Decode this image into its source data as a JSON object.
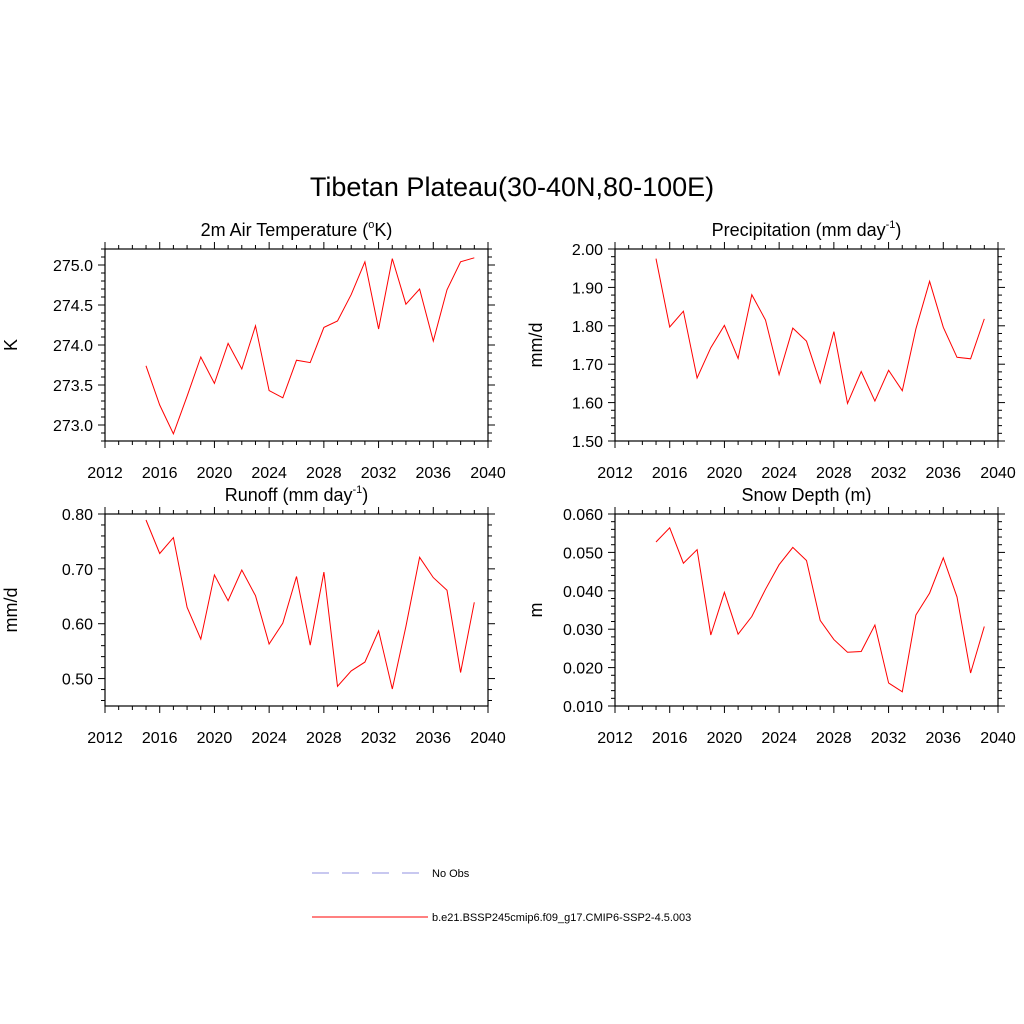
{
  "page_title": "Tibetan Plateau(30-40N,80-100E)",
  "legend": {
    "items": [
      {
        "label": "No Obs",
        "style": "dashed",
        "color": "#a8a8e8"
      },
      {
        "label": "b.e21.BSSP245cmip6.f09_g17.CMIP6-SSP2-4.5.003",
        "style": "solid",
        "color": "#ff0000"
      }
    ]
  },
  "chart_data": [
    {
      "type": "line",
      "title": "2m Air Temperature (",
      "title_sup": "o",
      "title_after": "K)",
      "ylabel": "K",
      "xlim": [
        2012,
        2040
      ],
      "ylim": [
        272.8,
        275.2
      ],
      "xticks": [
        "2012",
        "2016",
        "2020",
        "2024",
        "2028",
        "2032",
        "2036",
        "2040"
      ],
      "yticks": [
        "273.0",
        "274.5",
        "275.0"
      ],
      "yticks_all": [
        "273.0",
        "273.5",
        "274.0",
        "274.5",
        "275.0"
      ],
      "series": [
        {
          "color": "#ff0000",
          "x": [
            2015,
            2016,
            2017,
            2018,
            2019,
            2020,
            2021,
            2022,
            2023,
            2024,
            2025,
            2026,
            2027,
            2028,
            2029,
            2030,
            2031,
            2032,
            2033,
            2034,
            2035,
            2036,
            2037,
            2038,
            2039
          ],
          "values": [
            273.74,
            273.25,
            272.89,
            273.36,
            273.85,
            273.52,
            274.02,
            273.7,
            274.24,
            273.43,
            273.34,
            273.81,
            273.78,
            274.22,
            274.3,
            274.63,
            275.04,
            274.2,
            275.08,
            274.51,
            274.7,
            274.05,
            274.69,
            275.04,
            275.09
          ]
        }
      ]
    },
    {
      "type": "line",
      "title": "Precipitation (mm day",
      "title_sup": "-1",
      "title_after": ")",
      "ylabel": "mm/d",
      "xlim": [
        2012,
        2040
      ],
      "ylim": [
        1.5,
        2.0
      ],
      "xticks": [
        "2012",
        "2016",
        "2020",
        "2024",
        "2028",
        "2032",
        "2036",
        "2040"
      ],
      "yticks_all": [
        "1.50",
        "1.60",
        "1.70",
        "1.80",
        "1.90",
        "2.00"
      ],
      "series": [
        {
          "color": "#ff0000",
          "x": [
            2015,
            2016,
            2017,
            2018,
            2019,
            2020,
            2021,
            2022,
            2023,
            2024,
            2025,
            2026,
            2027,
            2028,
            2029,
            2030,
            2031,
            2032,
            2033,
            2034,
            2035,
            2036,
            2037,
            2038,
            2039
          ],
          "values": [
            1.975,
            1.797,
            1.838,
            1.664,
            1.743,
            1.801,
            1.715,
            1.881,
            1.815,
            1.673,
            1.794,
            1.76,
            1.651,
            1.785,
            1.598,
            1.681,
            1.604,
            1.684,
            1.631,
            1.792,
            1.916,
            1.796,
            1.718,
            1.714,
            1.818
          ]
        }
      ]
    },
    {
      "type": "line",
      "title": "Runoff (mm day",
      "title_sup": "-1",
      "title_after": ")",
      "ylabel": "mm/d",
      "xlim": [
        2012,
        2040
      ],
      "ylim": [
        0.45,
        0.8
      ],
      "xticks": [
        "2012",
        "2016",
        "2020",
        "2024",
        "2028",
        "2032",
        "2036",
        "2040"
      ],
      "yticks_all": [
        "0.50",
        "0.60",
        "0.70",
        "0.80"
      ],
      "series": [
        {
          "color": "#ff0000",
          "x": [
            2015,
            2016,
            2017,
            2018,
            2019,
            2020,
            2021,
            2022,
            2023,
            2024,
            2025,
            2026,
            2027,
            2028,
            2029,
            2030,
            2031,
            2032,
            2033,
            2034,
            2035,
            2036,
            2037,
            2038,
            2039
          ],
          "values": [
            0.789,
            0.728,
            0.757,
            0.63,
            0.572,
            0.689,
            0.642,
            0.698,
            0.651,
            0.563,
            0.601,
            0.686,
            0.561,
            0.694,
            0.486,
            0.514,
            0.53,
            0.587,
            0.481,
            0.595,
            0.721,
            0.684,
            0.661,
            0.511,
            0.639
          ]
        }
      ]
    },
    {
      "type": "line",
      "title": "Snow Depth (m)",
      "title_sup": "",
      "title_after": "",
      "ylabel": "m",
      "xlim": [
        2012,
        2040
      ],
      "ylim": [
        0.01,
        0.06
      ],
      "xticks": [
        "2012",
        "2016",
        "2020",
        "2024",
        "2028",
        "2032",
        "2036",
        "2040"
      ],
      "yticks_all": [
        "0.010",
        "0.020",
        "0.030",
        "0.040",
        "0.050",
        "0.060"
      ],
      "series": [
        {
          "color": "#ff0000",
          "x": [
            2015,
            2016,
            2017,
            2018,
            2019,
            2020,
            2021,
            2022,
            2023,
            2024,
            2025,
            2026,
            2027,
            2028,
            2029,
            2030,
            2031,
            2032,
            2033,
            2034,
            2035,
            2036,
            2037,
            2038,
            2039
          ],
          "values": [
            0.0527,
            0.0564,
            0.0472,
            0.0507,
            0.0285,
            0.0396,
            0.0287,
            0.0333,
            0.0404,
            0.0468,
            0.0513,
            0.0479,
            0.0323,
            0.0273,
            0.024,
            0.0242,
            0.0311,
            0.016,
            0.0137,
            0.0337,
            0.0394,
            0.0486,
            0.0384,
            0.0186,
            0.0307
          ]
        }
      ]
    }
  ]
}
